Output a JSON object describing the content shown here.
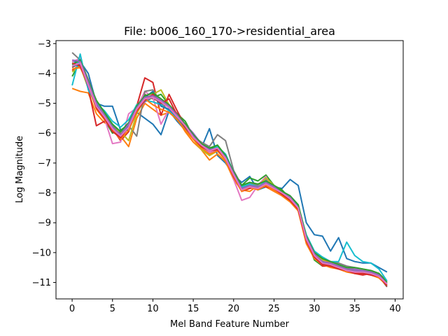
{
  "chart_data": {
    "type": "line",
    "title": "File: b006_160_170->residential_area",
    "xlabel": "Mel Band Feature Number",
    "ylabel": "Log Magnitude",
    "xlim": [
      -2,
      41
    ],
    "ylim": [
      -11.55,
      -2.9
    ],
    "xticks": [
      0,
      5,
      10,
      15,
      20,
      25,
      30,
      35,
      40
    ],
    "xtick_labels": [
      "0",
      "5",
      "10",
      "15",
      "20",
      "25",
      "30",
      "35",
      "40"
    ],
    "yticks": [
      -3,
      -4,
      -5,
      -6,
      -7,
      -8,
      -9,
      -10,
      -11
    ],
    "ytick_labels": [
      "−3",
      "−4",
      "−5",
      "−6",
      "−7",
      "−8",
      "−9",
      "−10",
      "−11"
    ],
    "grid": false,
    "legend": "none",
    "x": [
      0,
      1,
      2,
      3,
      4,
      5,
      6,
      7,
      8,
      9,
      10,
      11,
      12,
      13,
      14,
      15,
      16,
      17,
      18,
      19,
      20,
      21,
      22,
      23,
      24,
      25,
      26,
      27,
      28,
      29,
      30,
      31,
      32,
      33,
      34,
      35,
      36,
      37,
      38,
      39
    ],
    "series": [
      {
        "color": "#1f77b4",
        "values": [
          -3.6,
          -3.6,
          -4.0,
          -5.0,
          -5.1,
          -5.1,
          -5.9,
          -5.9,
          -5.3,
          -5.5,
          -5.7,
          -6.05,
          -5.25,
          -5.6,
          -5.9,
          -6.15,
          -6.5,
          -5.85,
          -6.75,
          -7.0,
          -7.4,
          -7.65,
          -7.45,
          -7.9,
          -7.8,
          -7.8,
          -7.85,
          -7.55,
          -7.75,
          -9.0,
          -9.4,
          -9.45,
          -9.95,
          -9.5,
          -10.2,
          -10.3,
          -10.35,
          -10.35,
          -10.5,
          -10.65
        ]
      },
      {
        "color": "#ff7f0e",
        "values": [
          -4.5,
          -4.6,
          -4.65,
          -5.35,
          -5.65,
          -5.75,
          -6.1,
          -6.45,
          -5.5,
          -5.0,
          -5.2,
          -5.4,
          -5.3,
          -5.5,
          -5.95,
          -6.3,
          -6.55,
          -6.9,
          -6.7,
          -6.95,
          -7.55,
          -7.9,
          -7.95,
          -7.75,
          -7.8,
          -7.95,
          -8.1,
          -8.3,
          -8.55,
          -9.6,
          -10.05,
          -10.2,
          -10.35,
          -10.45,
          -10.5,
          -10.55,
          -10.6,
          -10.6,
          -10.7,
          -11.0
        ]
      },
      {
        "color": "#2ca02c",
        "values": [
          -4.1,
          -3.6,
          -4.3,
          -5.0,
          -5.55,
          -6.0,
          -5.9,
          -5.7,
          -5.05,
          -4.95,
          -4.8,
          -4.7,
          -5.05,
          -5.35,
          -5.6,
          -6.1,
          -6.45,
          -6.55,
          -6.4,
          -6.75,
          -7.35,
          -7.75,
          -7.5,
          -7.6,
          -7.4,
          -7.75,
          -7.9,
          -8.2,
          -8.4,
          -9.5,
          -10.25,
          -10.45,
          -10.4,
          -10.5,
          -10.6,
          -10.6,
          -10.65,
          -10.7,
          -10.75,
          -11.05
        ]
      },
      {
        "color": "#d62728",
        "values": [
          -3.9,
          -3.7,
          -4.5,
          -5.75,
          -5.6,
          -5.85,
          -6.25,
          -5.95,
          -5.1,
          -4.15,
          -4.3,
          -5.4,
          -4.7,
          -5.25,
          -5.75,
          -6.2,
          -6.35,
          -6.55,
          -6.6,
          -6.8,
          -7.4,
          -7.95,
          -7.85,
          -7.8,
          -7.8,
          -7.85,
          -8.05,
          -8.25,
          -8.6,
          -9.65,
          -10.15,
          -10.45,
          -10.45,
          -10.55,
          -10.6,
          -10.7,
          -10.75,
          -10.7,
          -10.8,
          -11.1
        ]
      },
      {
        "color": "#9467bd",
        "values": [
          -3.7,
          -3.6,
          -4.35,
          -4.95,
          -5.35,
          -5.9,
          -6.1,
          -5.7,
          -5.25,
          -4.95,
          -4.75,
          -4.9,
          -5.1,
          -5.35,
          -5.7,
          -6.0,
          -6.35,
          -6.55,
          -6.5,
          -6.85,
          -7.35,
          -7.85,
          -7.7,
          -7.85,
          -7.55,
          -7.9,
          -8.0,
          -8.15,
          -8.5,
          -9.55,
          -10.1,
          -10.3,
          -10.4,
          -10.5,
          -10.55,
          -10.55,
          -10.6,
          -10.65,
          -10.75,
          -11.0
        ]
      },
      {
        "color": "#8c564b",
        "values": [
          -3.8,
          -3.65,
          -4.4,
          -5.1,
          -5.45,
          -5.7,
          -6.0,
          -5.8,
          -5.2,
          -4.7,
          -4.85,
          -4.95,
          -5.15,
          -5.45,
          -5.75,
          -6.1,
          -6.4,
          -6.6,
          -6.55,
          -6.9,
          -7.4,
          -7.9,
          -7.75,
          -7.85,
          -7.65,
          -7.85,
          -8.05,
          -8.2,
          -8.5,
          -9.6,
          -10.2,
          -10.35,
          -10.45,
          -10.5,
          -10.6,
          -10.65,
          -10.7,
          -10.7,
          -10.8,
          -11.15
        ]
      },
      {
        "color": "#e377c2",
        "values": [
          -3.6,
          -3.5,
          -4.3,
          -5.05,
          -5.5,
          -6.35,
          -6.3,
          -5.35,
          -5.15,
          -4.6,
          -4.8,
          -5.7,
          -5.2,
          -5.4,
          -5.8,
          -6.2,
          -6.5,
          -6.65,
          -6.6,
          -6.8,
          -7.55,
          -8.25,
          -8.15,
          -7.75,
          -7.45,
          -7.9,
          -8.1,
          -8.15,
          -8.45,
          -9.55,
          -10.2,
          -10.4,
          -10.45,
          -10.55,
          -10.6,
          -10.65,
          -10.7,
          -10.75,
          -10.8,
          -11.05
        ]
      },
      {
        "color": "#7f7f7f",
        "values": [
          -3.3,
          -3.55,
          -4.2,
          -4.95,
          -5.35,
          -5.75,
          -5.95,
          -5.75,
          -6.1,
          -4.6,
          -4.55,
          -5.0,
          -5.25,
          -5.5,
          -5.85,
          -6.1,
          -6.3,
          -6.45,
          -6.05,
          -6.25,
          -7.25,
          -7.75,
          -7.65,
          -7.75,
          -7.6,
          -7.8,
          -7.95,
          -8.1,
          -8.4,
          -9.45,
          -10.0,
          -10.15,
          -10.3,
          -10.35,
          -10.45,
          -10.5,
          -10.55,
          -10.6,
          -10.7,
          -10.95
        ]
      },
      {
        "color": "#bcbd22",
        "values": [
          -3.95,
          -3.75,
          -4.5,
          -5.15,
          -5.45,
          -5.85,
          -5.95,
          -6.25,
          -5.35,
          -4.85,
          -4.7,
          -4.55,
          -5.05,
          -5.4,
          -5.7,
          -6.2,
          -6.55,
          -6.75,
          -6.6,
          -6.8,
          -7.45,
          -7.85,
          -7.7,
          -7.8,
          -7.5,
          -7.75,
          -7.95,
          -8.2,
          -8.55,
          -9.65,
          -10.05,
          -10.25,
          -10.4,
          -10.5,
          -10.55,
          -10.6,
          -10.6,
          -10.65,
          -10.7,
          -11.0
        ]
      },
      {
        "color": "#17becf",
        "values": [
          -4.4,
          -3.35,
          -4.55,
          -5.0,
          -5.25,
          -5.6,
          -5.8,
          -5.55,
          -5.05,
          -4.9,
          -4.95,
          -5.05,
          -5.25,
          -5.45,
          -5.75,
          -6.15,
          -6.45,
          -6.6,
          -6.45,
          -6.7,
          -7.3,
          -7.8,
          -7.7,
          -7.8,
          -7.6,
          -7.8,
          -8.0,
          -8.15,
          -8.45,
          -9.4,
          -9.95,
          -10.15,
          -10.3,
          -10.3,
          -9.65,
          -10.1,
          -10.3,
          -10.35,
          -10.55,
          -10.95
        ]
      },
      {
        "color": "#1f77b4",
        "values": [
          -3.75,
          -3.7,
          -4.45,
          -5.05,
          -5.4,
          -5.8,
          -6.05,
          -5.75,
          -5.2,
          -4.8,
          -4.6,
          -5.1,
          -5.2,
          -5.45,
          -5.8,
          -6.15,
          -6.45,
          -6.6,
          -6.5,
          -6.85,
          -7.4,
          -7.85,
          -7.75,
          -7.85,
          -7.7,
          -7.85,
          -8.0,
          -8.2,
          -8.5,
          -9.55,
          -10.1,
          -10.3,
          -10.4,
          -10.45,
          -10.55,
          -10.6,
          -10.65,
          -10.7,
          -10.75,
          -11.05
        ]
      },
      {
        "color": "#ff7f0e",
        "values": [
          -3.85,
          -3.8,
          -4.35,
          -5.2,
          -5.55,
          -5.9,
          -6.2,
          -5.9,
          -5.3,
          -4.85,
          -5.05,
          -5.2,
          -5.3,
          -5.55,
          -5.9,
          -6.2,
          -6.5,
          -6.7,
          -6.6,
          -6.9,
          -7.5,
          -7.95,
          -7.8,
          -7.9,
          -7.75,
          -7.9,
          -8.1,
          -8.3,
          -8.6,
          -9.7,
          -10.2,
          -10.4,
          -10.5,
          -10.55,
          -10.65,
          -10.7,
          -10.7,
          -10.75,
          -10.85,
          -11.1
        ]
      },
      {
        "color": "#2ca02c",
        "values": [
          -3.7,
          -3.55,
          -4.25,
          -4.9,
          -5.3,
          -5.7,
          -5.95,
          -5.65,
          -5.1,
          -4.75,
          -4.65,
          -4.85,
          -5.05,
          -5.35,
          -5.7,
          -6.05,
          -6.35,
          -6.5,
          -6.4,
          -6.75,
          -7.3,
          -7.75,
          -7.65,
          -7.7,
          -7.6,
          -7.75,
          -7.95,
          -8.1,
          -8.4,
          -9.45,
          -10.0,
          -10.2,
          -10.3,
          -10.4,
          -10.5,
          -10.5,
          -10.55,
          -10.6,
          -10.7,
          -11.0
        ]
      },
      {
        "color": "#d62728",
        "values": [
          -3.65,
          -3.75,
          -4.4,
          -5.15,
          -5.5,
          -5.95,
          -6.15,
          -5.8,
          -5.25,
          -4.9,
          -4.7,
          -5.0,
          -4.85,
          -5.4,
          -5.8,
          -6.15,
          -6.45,
          -6.6,
          -6.55,
          -6.85,
          -7.45,
          -7.9,
          -7.8,
          -7.85,
          -7.7,
          -7.85,
          -8.05,
          -8.25,
          -8.55,
          -9.6,
          -10.15,
          -10.4,
          -10.45,
          -10.55,
          -10.6,
          -10.7,
          -10.7,
          -10.75,
          -10.8,
          -11.1
        ]
      },
      {
        "color": "#9467bd",
        "values": [
          -3.55,
          -3.6,
          -4.3,
          -5.0,
          -5.4,
          -5.8,
          -6.05,
          -5.7,
          -5.15,
          -4.8,
          -4.75,
          -4.9,
          -5.1,
          -5.4,
          -5.75,
          -6.1,
          -6.4,
          -6.55,
          -6.5,
          -6.8,
          -7.35,
          -7.85,
          -7.75,
          -7.8,
          -7.65,
          -7.8,
          -8.0,
          -8.15,
          -8.5,
          -9.5,
          -10.05,
          -10.3,
          -10.35,
          -10.45,
          -10.55,
          -10.6,
          -10.6,
          -10.65,
          -10.75,
          -11.05
        ]
      },
      {
        "color": "#e377c2",
        "values": [
          -3.75,
          -3.65,
          -4.4,
          -5.1,
          -5.45,
          -5.85,
          -6.1,
          -5.8,
          -5.2,
          -4.85,
          -4.8,
          -4.95,
          -5.15,
          -5.45,
          -5.75,
          -6.15,
          -6.4,
          -6.6,
          -6.5,
          -6.85,
          -7.4,
          -7.9,
          -7.8,
          -7.85,
          -7.7,
          -7.85,
          -8.0,
          -8.2,
          -8.5,
          -9.55,
          -10.1,
          -10.35,
          -10.4,
          -10.5,
          -10.6,
          -10.65,
          -10.65,
          -10.7,
          -10.8,
          -11.05
        ]
      }
    ]
  }
}
